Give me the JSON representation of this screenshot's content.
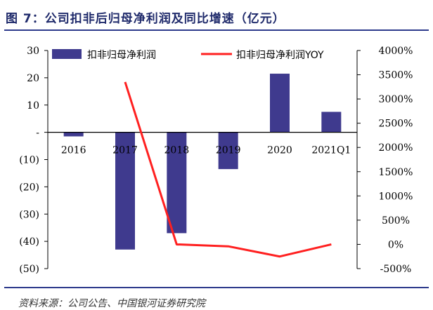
{
  "title": "图 7：公司扣非后归母净利润及同比增速（亿元）",
  "source": "资料来源：公司公告、中国银河证券研究院",
  "colors": {
    "bar": "#3f3a8e",
    "line": "#ff2020",
    "accent": "#2d3a8c"
  },
  "chart_data": {
    "type": "bar+line",
    "categories": [
      "2016",
      "2017",
      "2018",
      "2019",
      "2020",
      "2021Q1"
    ],
    "series": [
      {
        "name": "扣非归母净利润",
        "type": "bar",
        "axis": "left",
        "values": [
          -1.5,
          -43,
          -37,
          -13.5,
          21.5,
          7.5
        ]
      },
      {
        "name": "扣非归母净利润YOY",
        "type": "line",
        "axis": "right",
        "values": [
          null,
          3350,
          0,
          -40,
          -250,
          0
        ]
      }
    ],
    "left_axis": {
      "ylim": [
        -50,
        30
      ],
      "ticks": [
        30,
        20,
        10,
        0,
        -10,
        -20,
        -30,
        -40,
        -50
      ],
      "tick_labels": [
        "30",
        "20",
        "10",
        "-",
        "(10)",
        "(20)",
        "(30)",
        "(40)",
        "(50)"
      ]
    },
    "right_axis": {
      "ylim": [
        -500,
        4000
      ],
      "ticks": [
        4000,
        3500,
        3000,
        2500,
        2000,
        1500,
        1000,
        500,
        0,
        -500
      ],
      "tick_labels": [
        "4000%",
        "3500%",
        "3000%",
        "2500%",
        "2000%",
        "1500%",
        "1000%",
        "500%",
        "0%",
        "-500%"
      ]
    },
    "legend_position": "top"
  }
}
